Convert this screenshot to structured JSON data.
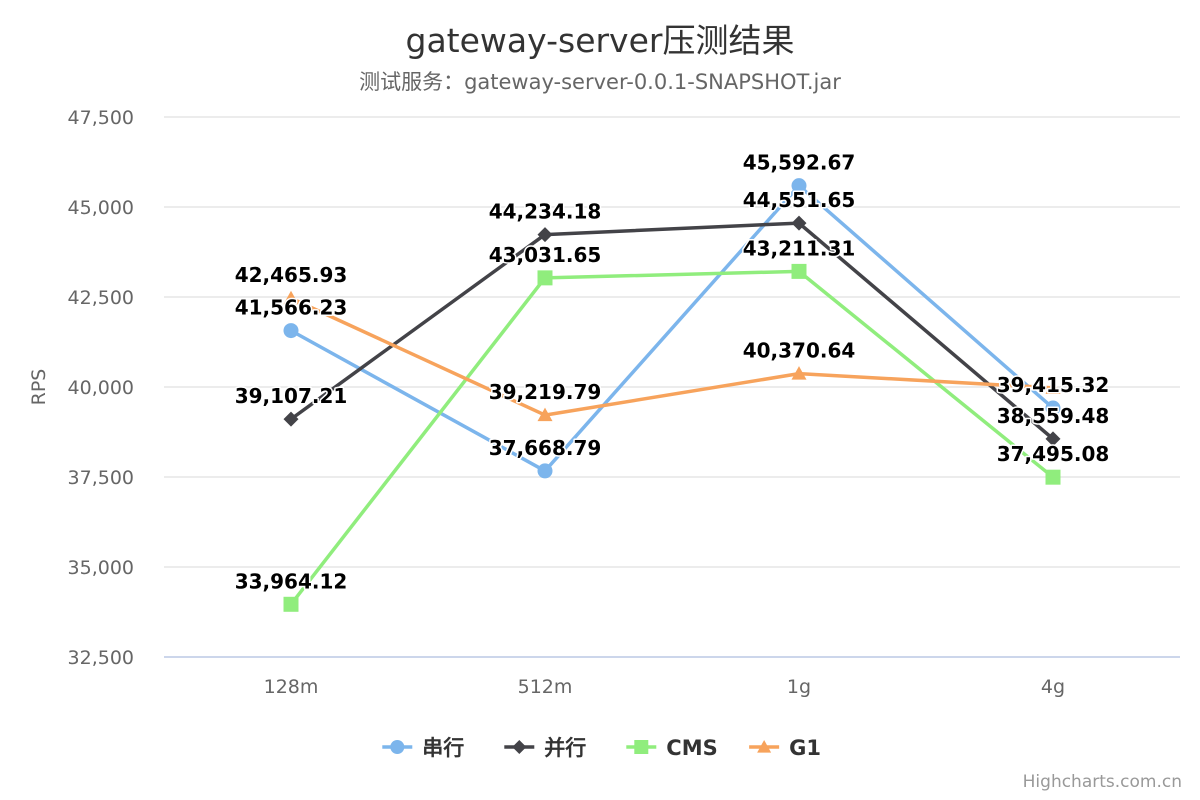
{
  "chart_data": {
    "type": "line",
    "title": "gateway-server压测结果",
    "subtitle": "测试服务：gateway-server-0.0.1-SNAPSHOT.jar",
    "xlabel": "",
    "ylabel": "RPS",
    "categories": [
      "128m",
      "512m",
      "1g",
      "4g"
    ],
    "ylim": [
      32500,
      47500
    ],
    "yticks": [
      32500,
      35000,
      37500,
      40000,
      42500,
      45000,
      47500
    ],
    "ytick_labels": [
      "32,500",
      "35,000",
      "37,500",
      "40,000",
      "42,500",
      "45,000",
      "47,500"
    ],
    "grid": true,
    "legend_position": "bottom-center",
    "series": [
      {
        "name": "串行",
        "color": "#7cb5ec",
        "marker": "circle",
        "values": [
          41566.23,
          37668.79,
          45592.67,
          39415.32
        ],
        "labels": [
          "41,566.23",
          "37,668.79",
          "45,592.67",
          "39,415.32"
        ]
      },
      {
        "name": "并行",
        "color": "#434348",
        "marker": "diamond",
        "values": [
          39107.21,
          44234.18,
          44551.65,
          38559.48
        ],
        "labels": [
          "39,107.21",
          "44,234.18",
          "44,551.65",
          "38,559.48"
        ]
      },
      {
        "name": "CMS",
        "color": "#90ed7d",
        "marker": "square",
        "values": [
          33964.12,
          43031.65,
          43211.31,
          37495.08
        ],
        "labels": [
          "33,964.12",
          "43,031.65",
          "43,211.31",
          "37,495.08"
        ]
      },
      {
        "name": "G1",
        "color": "#f7a35c",
        "marker": "triangle",
        "values": [
          42465.93,
          39219.79,
          40370.64,
          39977.0
        ],
        "labels": [
          "42,465.93",
          "39,219.79",
          "40,370.64",
          ""
        ]
      }
    ]
  },
  "credits": "Highcharts.com.cn"
}
